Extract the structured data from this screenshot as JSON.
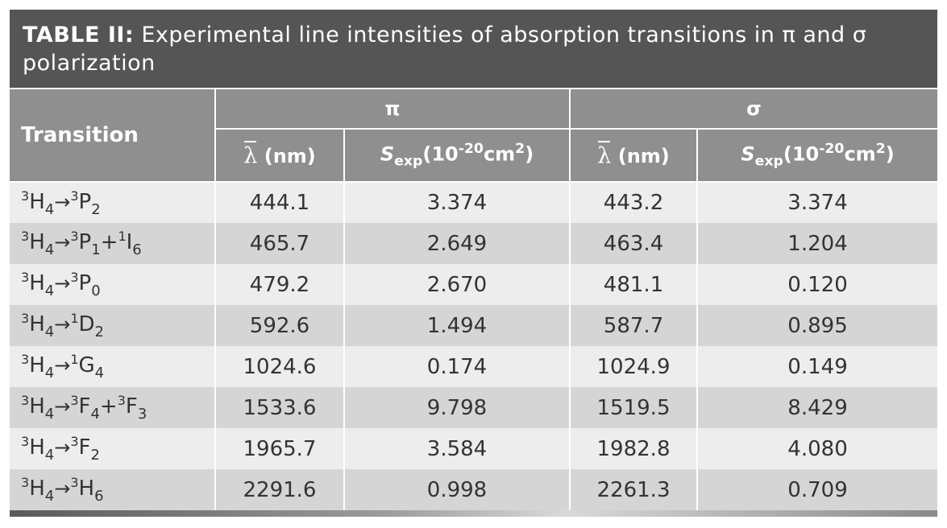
{
  "caption": {
    "label": "TABLE II:",
    "text": "Experimental line intensities of absorption transitions in π and σ polarization"
  },
  "header": {
    "transition": "Transition",
    "pi": "π",
    "sigma": "σ",
    "lambda_symbol": "λ",
    "lambda_unit": "(nm)",
    "s_symbol": "S",
    "s_subscript": "exp",
    "s_unit_prefix": "(10",
    "s_unit_exp": "-20",
    "s_unit_mid": "cm",
    "s_unit_sq": "2",
    "s_unit_close": ")"
  },
  "rows": [
    {
      "transition": [
        [
          "sup",
          "3"
        ],
        [
          "t",
          "H"
        ],
        [
          "sub",
          "4"
        ],
        [
          "arrow",
          "→"
        ],
        [
          "sup",
          "3"
        ],
        [
          "t",
          "P"
        ],
        [
          "sub",
          "2"
        ]
      ],
      "pi_lambda": "444.1",
      "pi_s": "3.374",
      "sigma_lambda": "443.2",
      "sigma_s": "3.374"
    },
    {
      "transition": [
        [
          "sup",
          "3"
        ],
        [
          "t",
          "H"
        ],
        [
          "sub",
          "4"
        ],
        [
          "arrow",
          "→"
        ],
        [
          "sup",
          "3"
        ],
        [
          "t",
          "P"
        ],
        [
          "sub",
          "1"
        ],
        [
          "t",
          "+"
        ],
        [
          "sup",
          "1"
        ],
        [
          "t",
          "I"
        ],
        [
          "sub",
          "6"
        ]
      ],
      "pi_lambda": "465.7",
      "pi_s": "2.649",
      "sigma_lambda": "463.4",
      "sigma_s": "1.204"
    },
    {
      "transition": [
        [
          "sup",
          "3"
        ],
        [
          "t",
          "H"
        ],
        [
          "sub",
          "4"
        ],
        [
          "arrow",
          "→"
        ],
        [
          "sup",
          "3"
        ],
        [
          "t",
          "P"
        ],
        [
          "sub",
          "0"
        ]
      ],
      "pi_lambda": "479.2",
      "pi_s": "2.670",
      "sigma_lambda": "481.1",
      "sigma_s": "0.120"
    },
    {
      "transition": [
        [
          "sup",
          "3"
        ],
        [
          "t",
          "H"
        ],
        [
          "sub",
          "4"
        ],
        [
          "arrow",
          "→"
        ],
        [
          "sup",
          "1"
        ],
        [
          "t",
          "D"
        ],
        [
          "sub",
          "2"
        ]
      ],
      "pi_lambda": "592.6",
      "pi_s": "1.494",
      "sigma_lambda": "587.7",
      "sigma_s": "0.895"
    },
    {
      "transition": [
        [
          "sup",
          "3"
        ],
        [
          "t",
          "H"
        ],
        [
          "sub",
          "4"
        ],
        [
          "arrow",
          "→"
        ],
        [
          "sup",
          "1"
        ],
        [
          "t",
          "G"
        ],
        [
          "sub",
          "4"
        ]
      ],
      "pi_lambda": "1024.6",
      "pi_s": "0.174",
      "sigma_lambda": "1024.9",
      "sigma_s": "0.149"
    },
    {
      "transition": [
        [
          "sup",
          "3"
        ],
        [
          "t",
          "H"
        ],
        [
          "sub",
          "4"
        ],
        [
          "arrow",
          "→"
        ],
        [
          "sup",
          "3"
        ],
        [
          "t",
          "F"
        ],
        [
          "sub",
          "4"
        ],
        [
          "t",
          "+"
        ],
        [
          "sup",
          "3"
        ],
        [
          "t",
          "F"
        ],
        [
          "sub",
          "3"
        ]
      ],
      "pi_lambda": "1533.6",
      "pi_s": "9.798",
      "sigma_lambda": "1519.5",
      "sigma_s": "8.429"
    },
    {
      "transition": [
        [
          "sup",
          "3"
        ],
        [
          "t",
          "H"
        ],
        [
          "sub",
          "4"
        ],
        [
          "arrow",
          "→"
        ],
        [
          "sup",
          "3"
        ],
        [
          "t",
          "F"
        ],
        [
          "sub",
          "2"
        ]
      ],
      "pi_lambda": "1965.7",
      "pi_s": "3.584",
      "sigma_lambda": "1982.8",
      "sigma_s": "4.080"
    },
    {
      "transition": [
        [
          "sup",
          "3"
        ],
        [
          "t",
          "H"
        ],
        [
          "sub",
          "4"
        ],
        [
          "arrow",
          "→"
        ],
        [
          "sup",
          "3"
        ],
        [
          "t",
          "H"
        ],
        [
          "sub",
          "6"
        ]
      ],
      "pi_lambda": "2291.6",
      "pi_s": "0.998",
      "sigma_lambda": "2261.3",
      "sigma_s": "0.709"
    }
  ]
}
